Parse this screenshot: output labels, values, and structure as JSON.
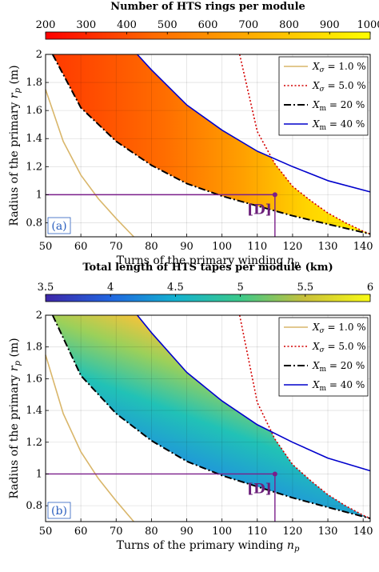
{
  "chart_data": [
    {
      "type": "heatmap",
      "panel_label": "(a)",
      "title": "Number of HTS rings per module",
      "colorbar": {
        "ticks": [
          200,
          300,
          400,
          500,
          600,
          700,
          800,
          900,
          1000
        ],
        "range": [
          200,
          1000
        ],
        "colormap": [
          "#ff0000",
          "#ff6a00",
          "#ffb400",
          "#ffff00"
        ]
      },
      "xlabel": "Turns of the primary winding n_p",
      "ylabel": "Radius of the primary r_p (m)",
      "xlim": [
        50,
        142
      ],
      "ylim": [
        0.7,
        2.0
      ],
      "xticks": [
        50,
        60,
        70,
        80,
        90,
        100,
        110,
        120,
        130,
        140
      ],
      "yticks": [
        0.8,
        1.0,
        1.2,
        1.4,
        1.6,
        1.8,
        2.0
      ],
      "ytick_labels": [
        "0.8",
        "1",
        "1.2",
        "1.4",
        "1.6",
        "1.8",
        "2"
      ],
      "grid": true,
      "legend_position": "top-right",
      "series": [
        {
          "name": "Xσ = 1.0 %",
          "color": "#d9b66a",
          "style": "solid",
          "x": [
            50,
            55,
            60,
            65,
            70,
            75
          ],
          "y": [
            1.75,
            1.38,
            1.14,
            0.97,
            0.83,
            0.7
          ]
        },
        {
          "name": "Xσ = 5.0 %",
          "color": "#d40000",
          "style": "dotted",
          "x": [
            105,
            110,
            115,
            120,
            125,
            130,
            135,
            140,
            142
          ],
          "y": [
            2.0,
            1.45,
            1.22,
            1.06,
            0.96,
            0.87,
            0.8,
            0.74,
            0.72
          ]
        },
        {
          "name": "Xm = 20 %",
          "color": "#000000",
          "style": "dashdot",
          "x": [
            52,
            60,
            70,
            80,
            90,
            100,
            110,
            120,
            130,
            142
          ],
          "y": [
            2.0,
            1.62,
            1.38,
            1.21,
            1.08,
            0.99,
            0.92,
            0.85,
            0.79,
            0.72
          ]
        },
        {
          "name": "Xm = 40 %",
          "color": "#0000cc",
          "style": "solid",
          "x": [
            76,
            80,
            90,
            100,
            110,
            120,
            130,
            142
          ],
          "y": [
            2.0,
            1.89,
            1.64,
            1.46,
            1.31,
            1.2,
            1.1,
            1.02
          ]
        }
      ],
      "shaded_region": {
        "lower_series": "Xm = 20 %",
        "upper_series_min_of": [
          "Xm = 40 %",
          "Xσ = 5.0 %"
        ],
        "x": [
          52,
          142
        ],
        "value_range": [
          200,
          1000
        ]
      },
      "annotation": {
        "label": "[D]",
        "x": 115,
        "y": 1.0
      }
    },
    {
      "type": "heatmap",
      "panel_label": "(b)",
      "title": "Total length of HTS tapes per module (km)",
      "colorbar": {
        "ticks": [
          3.5,
          4,
          4.5,
          5,
          5.5,
          6
        ],
        "range": [
          3.5,
          6
        ],
        "colormap": [
          "#3e26a8",
          "#2166e0",
          "#14b1cf",
          "#3bc98a",
          "#c9c03a",
          "#f9fb15"
        ]
      },
      "xlabel": "Turns of the primary winding n_p",
      "ylabel": "Radius of the primary r_p (m)",
      "xlim": [
        50,
        142
      ],
      "ylim": [
        0.7,
        2.0
      ],
      "xticks": [
        50,
        60,
        70,
        80,
        90,
        100,
        110,
        120,
        130,
        140
      ],
      "yticks": [
        0.8,
        1.0,
        1.2,
        1.4,
        1.6,
        1.8,
        2.0
      ],
      "ytick_labels": [
        "0.8",
        "1",
        "1.2",
        "1.4",
        "1.6",
        "1.8",
        "2"
      ],
      "grid": true,
      "legend_position": "top-right",
      "series": [
        {
          "name": "Xσ = 1.0 %",
          "color": "#d9b66a",
          "style": "solid",
          "x": [
            50,
            55,
            60,
            65,
            70,
            75
          ],
          "y": [
            1.75,
            1.38,
            1.14,
            0.97,
            0.83,
            0.7
          ]
        },
        {
          "name": "Xσ = 5.0 %",
          "color": "#d40000",
          "style": "dotted",
          "x": [
            105,
            110,
            115,
            120,
            125,
            130,
            135,
            140,
            142
          ],
          "y": [
            2.0,
            1.45,
            1.22,
            1.06,
            0.96,
            0.87,
            0.8,
            0.74,
            0.72
          ]
        },
        {
          "name": "Xm = 20 %",
          "color": "#000000",
          "style": "dashdot",
          "x": [
            52,
            60,
            70,
            80,
            90,
            100,
            110,
            120,
            130,
            142
          ],
          "y": [
            2.0,
            1.62,
            1.38,
            1.21,
            1.08,
            0.99,
            0.92,
            0.85,
            0.79,
            0.72
          ]
        },
        {
          "name": "Xm = 40 %",
          "color": "#0000cc",
          "style": "solid",
          "x": [
            76,
            80,
            90,
            100,
            110,
            120,
            130,
            142
          ],
          "y": [
            2.0,
            1.89,
            1.64,
            1.46,
            1.31,
            1.2,
            1.1,
            1.02
          ]
        }
      ],
      "shaded_region": {
        "lower_series": "Xm = 20 %",
        "upper_series_min_of": [
          "Xm = 40 %",
          "Xσ = 5.0 %"
        ],
        "x": [
          52,
          142
        ],
        "value_range": [
          3.5,
          6
        ]
      },
      "annotation": {
        "label": "[D]",
        "x": 115,
        "y": 1.0
      }
    }
  ]
}
